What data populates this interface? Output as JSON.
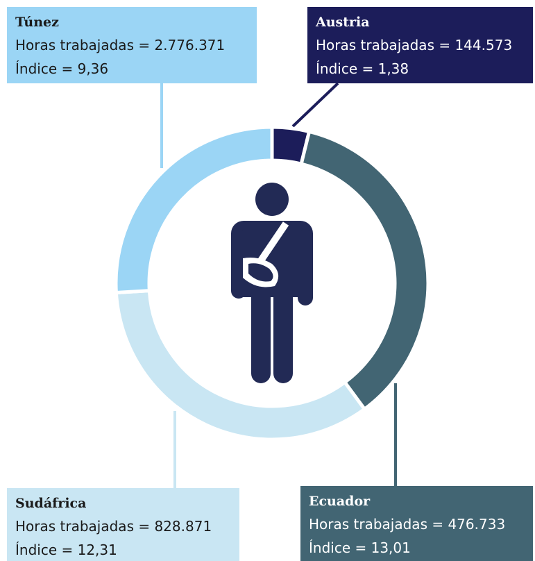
{
  "chart_data": {
    "type": "donut",
    "categories": [
      "Austria",
      "Ecuador",
      "Sudáfrica",
      "Túnez"
    ],
    "values": [
      1.38,
      13.01,
      12.31,
      9.36
    ],
    "value_labels": [
      "Índice = 1,38",
      "Índice = 13,01",
      "Índice = 12,31",
      "Índice = 9,36"
    ],
    "hours_labels": [
      "Horas trabajadas = 144.573",
      "Horas trabajadas = 476.733",
      "Horas trabajadas = 828.871",
      "Horas trabajadas = 2.776.371"
    ],
    "colors": [
      "#1c1d5a",
      "#426573",
      "#c9e6f3",
      "#9bd5f5"
    ]
  }
}
